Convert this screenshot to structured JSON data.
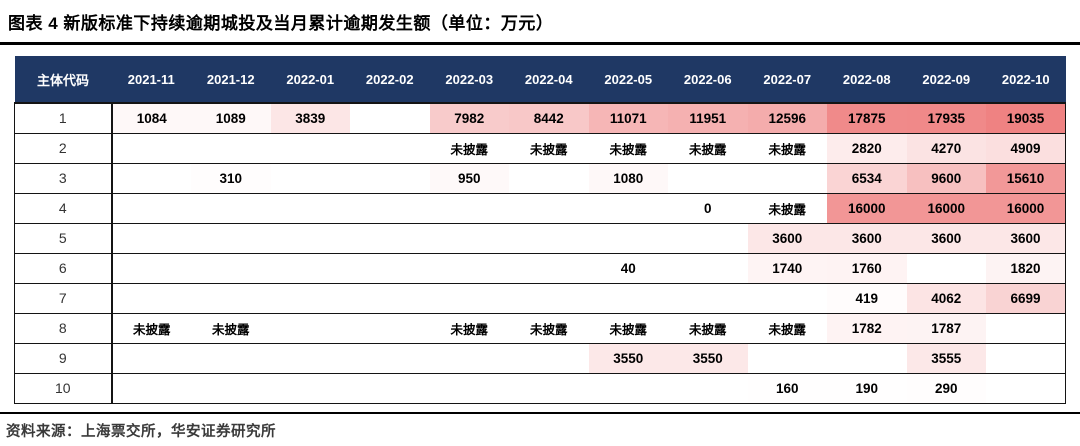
{
  "title": "图表 4 新版标准下持续逾期城投及当月累计逾期发生额（单位：万元）",
  "source": "资料来源：上海票交所，华安证券研究所",
  "colors": {
    "header_bg": "#1F3864",
    "header_text": "#FFFFFF",
    "cell_min_fill": "#FFFFFF",
    "cell_max_fill": "#EF8282",
    "grid_line": "#141414"
  },
  "undisclosed_label": "未披露",
  "chart_data": {
    "type": "table",
    "title": "新版标准下持续逾期城投及当月累计逾期发生额（单位：万元）",
    "id_column_header": "主体代码",
    "columns": [
      "2021-11",
      "2021-12",
      "2022-01",
      "2022-02",
      "2022-03",
      "2022-04",
      "2022-05",
      "2022-06",
      "2022-07",
      "2022-08",
      "2022-09",
      "2022-10"
    ],
    "max_value": 19035,
    "heatmap": true,
    "rows": [
      {
        "id": "1",
        "values": [
          "1084",
          "1089",
          "3839",
          "",
          "7982",
          "8442",
          "11071",
          "11951",
          "12596",
          "17875",
          "17935",
          "19035"
        ]
      },
      {
        "id": "2",
        "values": [
          "",
          "",
          "",
          "",
          "未披露",
          "未披露",
          "未披露",
          "未披露",
          "未披露",
          "2820",
          "4270",
          "4909"
        ]
      },
      {
        "id": "3",
        "values": [
          "",
          "310",
          "",
          "",
          "950",
          "",
          "1080",
          "",
          "",
          "6534",
          "9600",
          "15610"
        ]
      },
      {
        "id": "4",
        "values": [
          "",
          "",
          "",
          "",
          "",
          "",
          "",
          "0",
          "未披露",
          "16000",
          "16000",
          "16000"
        ]
      },
      {
        "id": "5",
        "values": [
          "",
          "",
          "",
          "",
          "",
          "",
          "",
          "",
          "3600",
          "3600",
          "3600",
          "3600"
        ]
      },
      {
        "id": "6",
        "values": [
          "",
          "",
          "",
          "",
          "",
          "",
          "40",
          "",
          "1740",
          "1760",
          "",
          "1820"
        ]
      },
      {
        "id": "7",
        "values": [
          "",
          "",
          "",
          "",
          "",
          "",
          "",
          "",
          "",
          "419",
          "4062",
          "6699"
        ]
      },
      {
        "id": "8",
        "values": [
          "未披露",
          "未披露",
          "",
          "",
          "未披露",
          "未披露",
          "未披露",
          "未披露",
          "未披露",
          "1782",
          "1787",
          ""
        ]
      },
      {
        "id": "9",
        "values": [
          "",
          "",
          "",
          "",
          "",
          "",
          "3550",
          "3550",
          "",
          "",
          "3555",
          ""
        ]
      },
      {
        "id": "10",
        "values": [
          "",
          "",
          "",
          "",
          "",
          "",
          "",
          "",
          "160",
          "190",
          "290",
          ""
        ]
      }
    ]
  }
}
